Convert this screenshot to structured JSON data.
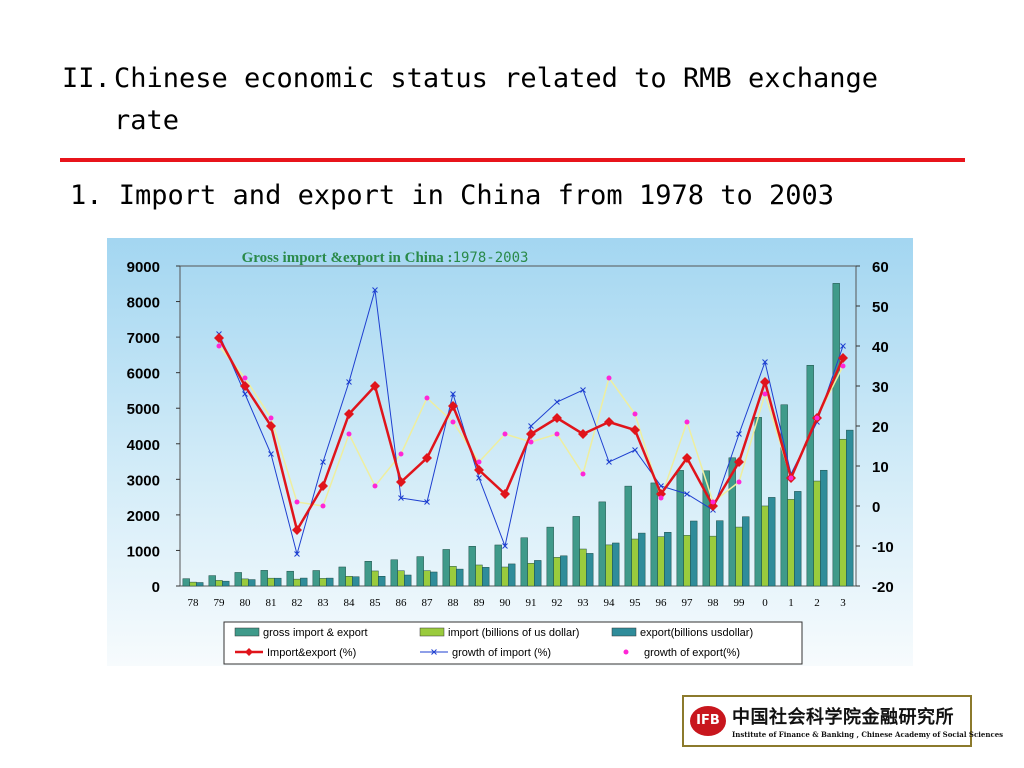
{
  "slide": {
    "section_number": "II.",
    "section_title_line1": "Chinese economic status related to RMB exchange",
    "section_title_line2": "rate",
    "subheading": "1. Import and export in China from 1978 to 2003"
  },
  "logo": {
    "mark": "IFB",
    "chinese_name": "中国社会科学院金融研究所",
    "english_name": "Institute of Finance & Banking , Chinese Academy of Social Sciences"
  },
  "colors": {
    "chart_background": "#a9d9f2",
    "gross_bar": "#3f9a8a",
    "import_bar": "#9acb3d",
    "export_bar": "#2f8c9a",
    "line_red": "#e0141b",
    "line_blue": "#1e3fd0",
    "line_export_growth": "#eeee9f",
    "export_growth_marker": "#ff26d6",
    "rule": "#e8141b"
  },
  "chart_data": {
    "type": "bar",
    "title_part1": "Gross import &export in China :",
    "title_part2": "1978-2003",
    "categories": [
      "78",
      "79",
      "80",
      "81",
      "82",
      "83",
      "84",
      "85",
      "86",
      "87",
      "88",
      "89",
      "90",
      "91",
      "92",
      "93",
      "94",
      "95",
      "96",
      "97",
      "98",
      "99",
      "0",
      "1",
      "2",
      "3"
    ],
    "y_left": {
      "min": 0,
      "max": 9000,
      "ticks": [
        "0",
        "1000",
        "2000",
        "3000",
        "4000",
        "5000",
        "6000",
        "7000",
        "8000",
        "9000"
      ]
    },
    "y_right": {
      "min": -20,
      "max": 60,
      "ticks": [
        "-20",
        "-10",
        "0",
        "10",
        "20",
        "30",
        "40",
        "50",
        "60"
      ]
    },
    "series": [
      {
        "name": "gross import & export",
        "type": "bar",
        "axis": "left",
        "values": [
          206,
          293,
          381,
          440,
          416,
          436,
          535,
          696,
          738,
          827,
          1028,
          1117,
          1154,
          1357,
          1656,
          1957,
          2366,
          2809,
          2899,
          3252,
          3240,
          3606,
          4743,
          5097,
          6208,
          8512
        ]
      },
      {
        "name": "import (billions of us dollar)",
        "type": "bar",
        "axis": "left",
        "values": [
          109,
          157,
          200,
          220,
          193,
          214,
          274,
          423,
          429,
          432,
          553,
          591,
          534,
          638,
          806,
          1040,
          1156,
          1321,
          1388,
          1424,
          1402,
          1657,
          2251,
          2436,
          2952,
          4128
        ]
      },
      {
        "name": "export(billions usdollar)",
        "type": "bar",
        "axis": "left",
        "values": [
          98,
          136,
          181,
          220,
          223,
          222,
          261,
          274,
          309,
          394,
          475,
          525,
          621,
          719,
          849,
          917,
          1210,
          1488,
          1511,
          1828,
          1837,
          1949,
          2492,
          2661,
          3256,
          4384
        ]
      },
      {
        "name": "Import&export (%)",
        "type": "line",
        "axis": "right",
        "values": [
          null,
          42,
          30,
          20,
          -6,
          5,
          23,
          30,
          6,
          12,
          25,
          9,
          3,
          18,
          22,
          18,
          21,
          19,
          3,
          12,
          0,
          11,
          31,
          7,
          22,
          37
        ]
      },
      {
        "name": "growth of import (%)",
        "type": "line",
        "axis": "right",
        "values": [
          null,
          43,
          28,
          13,
          -12,
          11,
          31,
          54,
          2,
          1,
          28,
          7,
          -10,
          20,
          26,
          29,
          11,
          14,
          5,
          3,
          -1,
          18,
          36,
          8,
          21,
          40
        ]
      },
      {
        "name": "growth of export(%)",
        "type": "line",
        "axis": "right",
        "values": [
          null,
          40,
          32,
          22,
          1,
          0,
          18,
          5,
          13,
          27,
          21,
          11,
          18,
          16,
          18,
          8,
          32,
          23,
          2,
          21,
          1,
          6,
          28,
          7,
          22,
          35
        ]
      }
    ]
  }
}
